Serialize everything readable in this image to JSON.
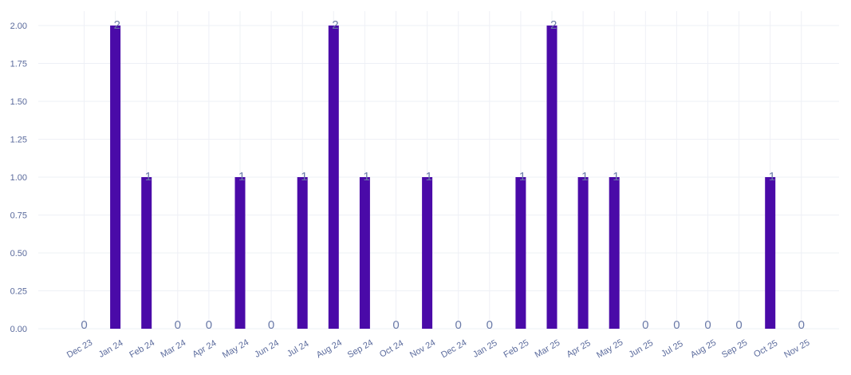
{
  "chart_data": {
    "type": "bar",
    "categories": [
      "Dec 23",
      "Jan 24",
      "Feb 24",
      "Mar 24",
      "Apr 24",
      "May 24",
      "Jun 24",
      "Jul 24",
      "Aug 24",
      "Sep 24",
      "Oct 24",
      "Nov 24",
      "Dec 24",
      "Jan 25",
      "Feb 25",
      "Mar 25",
      "Apr 25",
      "May 25",
      "Jun 25",
      "Jul 25",
      "Aug 25",
      "Sep 25",
      "Oct 25",
      "Nov 25"
    ],
    "values": [
      0,
      2,
      1,
      0,
      0,
      1,
      0,
      1,
      2,
      1,
      0,
      1,
      0,
      0,
      1,
      2,
      1,
      1,
      0,
      0,
      0,
      0,
      1,
      0
    ],
    "data_labels": [
      "0",
      "2",
      "1",
      "0",
      "0",
      "1",
      "0",
      "1",
      "2",
      "1",
      "0",
      "1",
      "0",
      "0",
      "1",
      "2",
      "1",
      "1",
      "0",
      "0",
      "0",
      "0",
      "1",
      "0"
    ],
    "y_ticks": [
      "0.00",
      "0.25",
      "0.50",
      "0.75",
      "1.00",
      "1.25",
      "1.50",
      "1.75",
      "2.00"
    ],
    "ylim": [
      0,
      2
    ],
    "grid": true,
    "title": "",
    "xlabel": "",
    "ylabel": "",
    "colors": {
      "bar": "#4a0aa8",
      "tick_text": "#5a6a9c",
      "data_label": "#6a7aa8",
      "grid": "#eef0f6"
    }
  }
}
